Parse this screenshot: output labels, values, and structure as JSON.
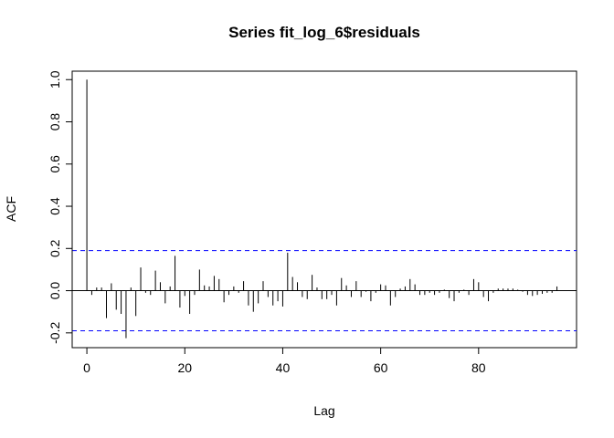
{
  "chart_data": {
    "type": "bar",
    "title": "Series  fit_log_6$residuals",
    "xlabel": "Lag",
    "ylabel": "ACF",
    "xlim": [
      -3,
      100
    ],
    "ylim": [
      -0.27,
      1.04
    ],
    "xticks": [
      0,
      20,
      40,
      60,
      80
    ],
    "yticks": [
      -0.2,
      0.0,
      0.2,
      0.4,
      0.6,
      0.8,
      1.0
    ],
    "ytick_labels": [
      "-0.2",
      "0.0",
      "0.2",
      "0.4",
      "0.6",
      "0.8",
      "1.0"
    ],
    "confidence_bound": 0.19,
    "confidence_color": "#0000ff",
    "bar_color": "#000000",
    "grid": false,
    "lags": [
      0,
      1,
      2,
      3,
      4,
      5,
      6,
      7,
      8,
      9,
      10,
      11,
      12,
      13,
      14,
      15,
      16,
      17,
      18,
      19,
      20,
      21,
      22,
      23,
      24,
      25,
      26,
      27,
      28,
      29,
      30,
      31,
      32,
      33,
      34,
      35,
      36,
      37,
      38,
      39,
      40,
      41,
      42,
      43,
      44,
      45,
      46,
      47,
      48,
      49,
      50,
      51,
      52,
      53,
      54,
      55,
      56,
      57,
      58,
      59,
      60,
      61,
      62,
      63,
      64,
      65,
      66,
      67,
      68,
      69,
      70,
      71,
      72,
      73,
      74,
      75,
      76,
      77,
      78,
      79,
      80,
      81,
      82,
      83,
      84,
      85,
      86,
      87,
      88,
      89,
      90,
      91,
      92,
      93,
      94,
      95,
      96
    ],
    "values": [
      1.0,
      -0.02,
      0.015,
      0.015,
      -0.13,
      0.035,
      -0.09,
      -0.11,
      -0.225,
      0.015,
      -0.12,
      0.11,
      -0.01,
      -0.02,
      0.095,
      0.04,
      -0.06,
      0.02,
      0.165,
      -0.08,
      -0.025,
      -0.11,
      -0.02,
      0.1,
      0.025,
      0.02,
      0.07,
      0.055,
      -0.055,
      -0.02,
      0.02,
      -0.01,
      0.045,
      -0.07,
      -0.1,
      -0.06,
      0.045,
      -0.03,
      -0.07,
      -0.05,
      -0.075,
      0.18,
      0.065,
      0.04,
      -0.03,
      -0.04,
      0.075,
      0.015,
      -0.04,
      -0.04,
      -0.02,
      -0.07,
      0.06,
      0.025,
      -0.03,
      0.045,
      -0.03,
      -0.005,
      -0.05,
      -0.01,
      0.03,
      0.025,
      -0.07,
      -0.03,
      0.01,
      0.02,
      0.055,
      0.03,
      -0.02,
      -0.02,
      -0.01,
      -0.02,
      -0.01,
      0.005,
      -0.035,
      -0.05,
      -0.01,
      0.005,
      -0.02,
      0.055,
      0.04,
      -0.03,
      -0.05,
      -0.01,
      0.01,
      0.01,
      0.01,
      0.01,
      0.005,
      -0.005,
      -0.02,
      -0.025,
      -0.02,
      -0.015,
      -0.01,
      -0.01,
      0.02
    ]
  }
}
